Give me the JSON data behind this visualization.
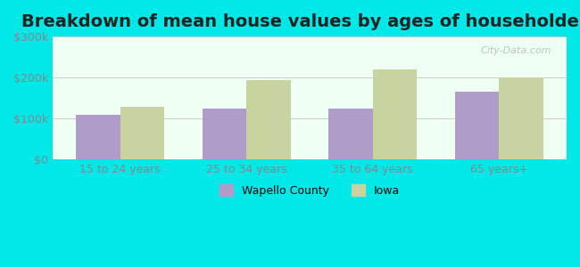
{
  "title": "Breakdown of mean house values by ages of householders",
  "categories": [
    "15 to 24 years",
    "25 to 34 years",
    "35 to 64 years",
    "65 years+"
  ],
  "wapello_values": [
    110000,
    125000,
    125000,
    165000
  ],
  "iowa_values": [
    130000,
    193000,
    220000,
    200000
  ],
  "wapello_color": "#b09cc8",
  "iowa_color": "#c8d4a0",
  "ylim": [
    0,
    300000
  ],
  "yticks": [
    0,
    100000,
    200000,
    300000
  ],
  "ytick_labels": [
    "$0",
    "$100k",
    "$200k",
    "$300k"
  ],
  "bar_width": 0.35,
  "background_color": "#e0f8f0",
  "plot_bg_start": "#f0fff4",
  "plot_bg_end": "#d8f0d0",
  "legend_labels": [
    "Wapello County",
    "Iowa"
  ],
  "watermark": "City-Data.com",
  "title_fontsize": 14,
  "tick_fontsize": 9,
  "legend_fontsize": 9,
  "cyan_bg": "#00e5ff"
}
